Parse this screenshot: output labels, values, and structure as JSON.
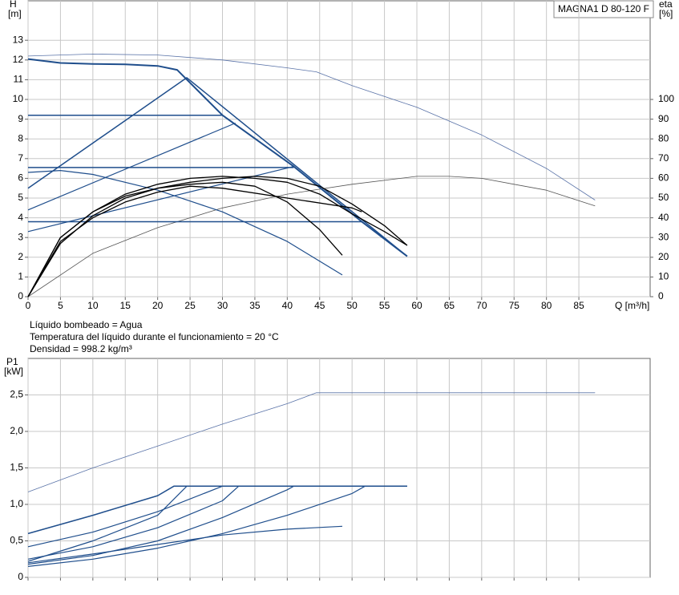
{
  "chart_data": [
    {
      "type": "line",
      "title": "MAGNA1 D 80-120 F",
      "ylabel": "H",
      "yunit": "[m]",
      "y2label": "eta",
      "y2unit": "[%]",
      "xlabel": "Q [m³/h]",
      "xlim": [
        0,
        96
      ],
      "xticks": [
        0,
        5,
        10,
        15,
        20,
        25,
        30,
        35,
        40,
        45,
        50,
        55,
        60,
        65,
        70,
        75,
        80,
        85
      ],
      "ylim": [
        0,
        15
      ],
      "yticks": [
        0,
        1,
        2,
        3,
        4,
        5,
        6,
        7,
        8,
        9,
        10,
        11,
        12,
        13
      ],
      "y2lim": [
        0,
        150
      ],
      "y2ticks": [
        0,
        10,
        20,
        30,
        40,
        50,
        60,
        70,
        80,
        90,
        100
      ],
      "grid": true,
      "series": [
        {
          "color": "#5a73a8",
          "width": 0.8,
          "x": [
            0,
            10,
            20,
            30,
            40,
            44.5,
            50,
            60,
            70,
            80,
            87.5
          ],
          "values": [
            12.2,
            12.3,
            12.25,
            12.0,
            11.6,
            11.4,
            10.7,
            9.6,
            8.2,
            6.5,
            4.9
          ]
        },
        {
          "color": "#555555",
          "width": 0.8,
          "axis": "y2",
          "x": [
            0,
            10,
            20,
            30,
            40,
            50,
            60,
            65,
            70,
            80,
            87.5
          ],
          "values": [
            0,
            22,
            35,
            45,
            52,
            57,
            61,
            61,
            60,
            54,
            46
          ]
        },
        {
          "color": "#1f4e8c",
          "width": 2,
          "x": [
            0,
            5,
            10,
            15,
            20,
            23,
            30,
            41,
            51.5,
            58.5
          ],
          "values": [
            12.05,
            11.85,
            11.8,
            11.78,
            11.7,
            11.5,
            9.2,
            6.6,
            3.8,
            2.05
          ]
        },
        {
          "color": "#1f4e8c",
          "width": 1.5,
          "x": [
            0,
            24.5,
            58.5
          ],
          "values": [
            5.5,
            11.1,
            2.05
          ]
        },
        {
          "color": "#1f4e8c",
          "width": 1.5,
          "x": [
            0,
            30
          ],
          "values": [
            9.2,
            9.2
          ]
        },
        {
          "color": "#1f4e8c",
          "width": 1.5,
          "x": [
            0,
            41
          ],
          "values": [
            6.55,
            6.55
          ]
        },
        {
          "color": "#1f4e8c",
          "width": 1.5,
          "x": [
            0,
            51.5
          ],
          "values": [
            3.8,
            3.8
          ]
        },
        {
          "color": "#1f4e8c",
          "width": 1.2,
          "x": [
            0,
            32
          ],
          "values": [
            4.4,
            8.8
          ]
        },
        {
          "color": "#1f4e8c",
          "width": 1.2,
          "x": [
            0,
            41
          ],
          "values": [
            3.3,
            6.6
          ]
        },
        {
          "color": "#1f4e8c",
          "width": 1.2,
          "x": [
            0,
            5,
            10,
            20,
            30,
            40,
            48.5
          ],
          "values": [
            6.3,
            6.4,
            6.2,
            5.4,
            4.3,
            2.8,
            1.1
          ]
        },
        {
          "color": "#000000",
          "width": 1.3,
          "axis": "y2",
          "x": [
            0,
            5,
            10,
            15,
            20,
            25,
            30,
            35,
            40,
            45,
            48.5
          ],
          "values": [
            0,
            30,
            43,
            51,
            55,
            57,
            58,
            56,
            48,
            34,
            21
          ]
        },
        {
          "color": "#000000",
          "width": 1.3,
          "axis": "y2",
          "x": [
            0,
            5,
            10,
            15,
            20,
            25,
            30,
            35,
            40,
            45,
            50,
            55,
            58.5
          ],
          "values": [
            0,
            30,
            43,
            52,
            57,
            60,
            61,
            60,
            58,
            52,
            42,
            33,
            26
          ]
        },
        {
          "color": "#000000",
          "width": 1.3,
          "axis": "y2",
          "x": [
            0,
            5,
            10,
            15,
            20,
            25,
            30,
            40,
            50,
            51.5
          ],
          "values": [
            0,
            28,
            40,
            48,
            53,
            56,
            55,
            50,
            45,
            43
          ]
        },
        {
          "color": "#000000",
          "width": 1.3,
          "axis": "y2",
          "x": [
            0,
            5,
            10,
            15,
            20,
            25,
            30,
            35,
            40,
            45,
            50,
            55,
            58.5
          ],
          "values": [
            0,
            27,
            41,
            50,
            55,
            58,
            60,
            61,
            60,
            56,
            47,
            36,
            26
          ]
        }
      ]
    },
    {
      "type": "line",
      "ylabel": "P1",
      "yunit": "[kW]",
      "xlim": [
        0,
        96
      ],
      "xticks": [
        0,
        5,
        10,
        15,
        20,
        25,
        30,
        35,
        40,
        45,
        50,
        55,
        60,
        65,
        70,
        75,
        80,
        85
      ],
      "xtick_labels": false,
      "ylim": [
        0,
        3.0
      ],
      "yticks": [
        0,
        {
          "value": 0.5,
          "label": "0,5"
        },
        {
          "value": 1,
          "label": "1,0"
        },
        {
          "value": 1.5,
          "label": "1,5"
        },
        {
          "value": 2,
          "label": "2,0"
        },
        {
          "value": 2.5,
          "label": "2,5"
        }
      ],
      "grid": true,
      "series": [
        {
          "color": "#5a73a8",
          "width": 0.8,
          "x": [
            0,
            10,
            20,
            30,
            40,
            44.5,
            87.5
          ],
          "values": [
            1.17,
            1.5,
            1.8,
            2.1,
            2.38,
            2.53,
            2.53
          ]
        },
        {
          "color": "#1f4e8c",
          "width": 1.5,
          "x": [
            0,
            10,
            20,
            22.5,
            58.5
          ],
          "values": [
            0.6,
            0.85,
            1.12,
            1.25,
            1.25
          ]
        },
        {
          "color": "#1f4e8c",
          "width": 1.2,
          "x": [
            0,
            10,
            20,
            30,
            58.5
          ],
          "values": [
            0.42,
            0.62,
            0.9,
            1.25,
            1.25
          ]
        },
        {
          "color": "#1f4e8c",
          "width": 1.2,
          "x": [
            0,
            10,
            20,
            30,
            32.5,
            58.5
          ],
          "values": [
            0.25,
            0.42,
            0.68,
            1.05,
            1.25,
            1.25
          ]
        },
        {
          "color": "#1f4e8c",
          "width": 1.2,
          "x": [
            0,
            10,
            20,
            24.5
          ],
          "values": [
            0.22,
            0.5,
            0.85,
            1.25
          ]
        },
        {
          "color": "#1f4e8c",
          "width": 1.2,
          "x": [
            0,
            10,
            20,
            30,
            40,
            41,
            58.5
          ],
          "values": [
            0.18,
            0.3,
            0.5,
            0.82,
            1.2,
            1.25,
            1.25
          ]
        },
        {
          "color": "#1f4e8c",
          "width": 1.2,
          "x": [
            0,
            10,
            20,
            30,
            40,
            50,
            52,
            58.5
          ],
          "values": [
            0.15,
            0.25,
            0.4,
            0.6,
            0.85,
            1.15,
            1.25,
            1.25
          ]
        },
        {
          "color": "#1f4e8c",
          "width": 1.2,
          "x": [
            0,
            10,
            20,
            30,
            40,
            48.5
          ],
          "values": [
            0.2,
            0.32,
            0.45,
            0.58,
            0.66,
            0.7
          ]
        }
      ]
    }
  ],
  "notes": [
    "Líquido bombeado = Agua",
    "Temperatura del líquido durante el funcionamiento = 20 °C",
    "Densidad = 998.2 kg/m³"
  ]
}
